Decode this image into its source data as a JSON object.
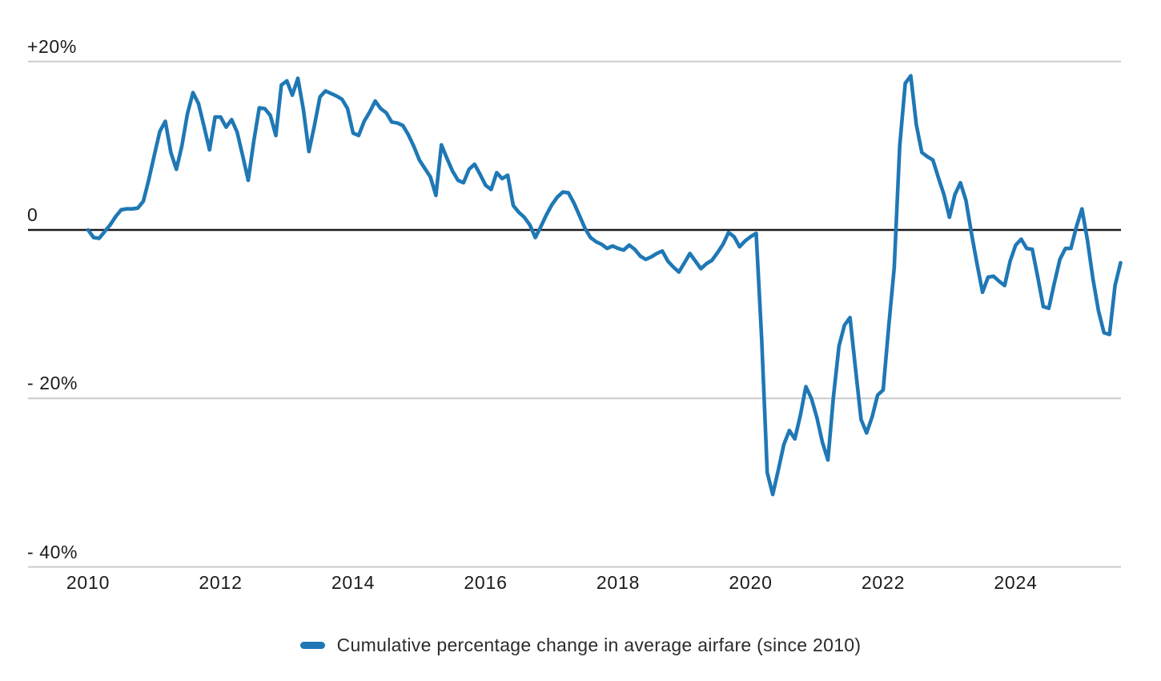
{
  "chart_data": {
    "type": "line",
    "title": "",
    "legend_label": "Cumulative percentage change in average airfare (since 2010)",
    "series": [
      {
        "name": "Cumulative percentage change in average airfare (since 2010)",
        "x_start": "2010-01",
        "x_end": "2025-08",
        "frequency": "monthly",
        "unit": "percent",
        "values": [
          0.0,
          -0.9,
          -1.0,
          -0.2,
          0.6,
          1.6,
          2.4,
          2.5,
          2.5,
          2.6,
          3.4,
          6.0,
          8.9,
          11.7,
          12.9,
          9.2,
          7.2,
          10.0,
          13.8,
          16.3,
          15.0,
          12.3,
          9.5,
          13.4,
          13.4,
          12.2,
          13.1,
          11.6,
          8.8,
          5.9,
          10.5,
          14.5,
          14.4,
          13.6,
          11.2,
          17.2,
          17.7,
          16.0,
          18.0,
          14.3,
          9.3,
          12.4,
          15.8,
          16.5,
          16.2,
          15.9,
          15.5,
          14.4,
          11.5,
          11.2,
          12.9,
          14.0,
          15.3,
          14.4,
          13.9,
          12.8,
          12.7,
          12.4,
          11.3,
          9.9,
          8.3,
          7.3,
          6.3,
          4.1,
          10.1,
          8.5,
          7.0,
          5.9,
          5.6,
          7.2,
          7.8,
          6.6,
          5.3,
          4.8,
          6.8,
          6.1,
          6.5,
          2.9,
          2.1,
          1.5,
          0.6,
          -0.9,
          0.4,
          1.8,
          3.0,
          3.9,
          4.5,
          4.4,
          3.2,
          1.7,
          0.2,
          -0.9,
          -1.4,
          -1.7,
          -2.2,
          -1.9,
          -2.2,
          -2.4,
          -1.8,
          -2.3,
          -3.1,
          -3.5,
          -3.2,
          -2.8,
          -2.5,
          -3.7,
          -4.4,
          -5.0,
          -3.9,
          -2.8,
          -3.7,
          -4.6,
          -4.0,
          -3.6,
          -2.7,
          -1.7,
          -0.3,
          -0.8,
          -2.0,
          -1.3,
          -0.8,
          -0.4,
          -13.0,
          -28.8,
          -31.4,
          -28.5,
          -25.5,
          -23.8,
          -24.8,
          -22.0,
          -18.6,
          -20.0,
          -22.3,
          -25.2,
          -27.3,
          -19.8,
          -13.8,
          -11.3,
          -10.4,
          -16.5,
          -22.5,
          -24.1,
          -22.2,
          -19.6,
          -19.0,
          -11.5,
          -4.5,
          10.0,
          17.4,
          18.3,
          12.5,
          9.2,
          8.7,
          8.3,
          6.2,
          4.2,
          1.5,
          4.2,
          5.6,
          3.5,
          -0.4,
          -4.0,
          -7.4,
          -5.6,
          -5.5,
          -6.1,
          -6.6,
          -3.7,
          -1.8,
          -1.1,
          -2.2,
          -2.3,
          -5.6,
          -9.1,
          -9.3,
          -6.3,
          -3.5,
          -2.2,
          -2.2,
          0.4,
          2.5,
          -1.2,
          -5.8,
          -9.6,
          -12.2,
          -12.4,
          -6.6,
          -3.9
        ]
      }
    ],
    "y_ticks": [
      {
        "label": "+20%",
        "value": 20
      },
      {
        "label": "0",
        "value": 0
      },
      {
        "label": "- 20%",
        "value": -20
      },
      {
        "label": "- 40%",
        "value": -40
      }
    ],
    "x_tick_years": [
      "2010",
      "2012",
      "2014",
      "2016",
      "2018",
      "2020",
      "2022",
      "2024"
    ],
    "ylim": [
      -44,
      24
    ],
    "x_axis_range_years": [
      2010.0,
      2025.67
    ],
    "grid": true,
    "legend_position": "bottom-center",
    "colors": {
      "line": "#1f78b5",
      "zero_axis": "#1a1a1a",
      "gridline": "#cbcbcb",
      "tick_text": "#1b1b1b",
      "legend_text": "#2b2b2b",
      "background": "#ffffff"
    }
  }
}
